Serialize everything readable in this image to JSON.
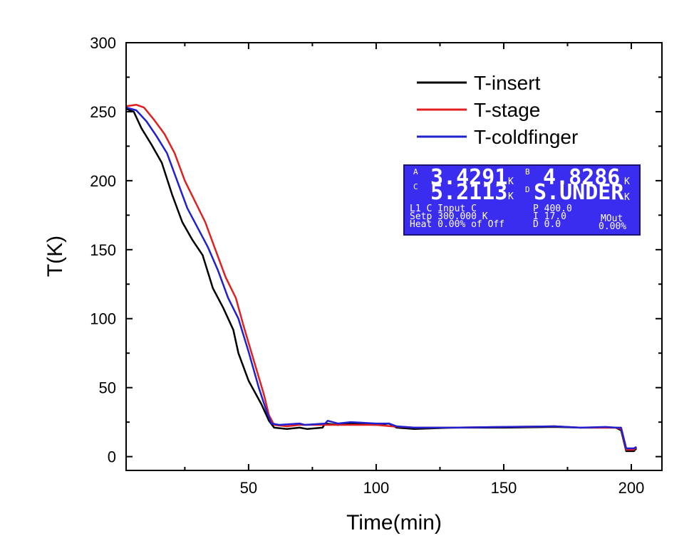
{
  "chart_data": {
    "type": "line",
    "xlabel": "Time(min)",
    "ylabel": "T(K)",
    "xlim": [
      2,
      212
    ],
    "ylim": [
      -10,
      300
    ],
    "xticks": [
      50,
      100,
      150,
      200
    ],
    "yticks": [
      0,
      50,
      100,
      150,
      200,
      250,
      300
    ],
    "grid": false,
    "legend_position": "top-right",
    "series": [
      {
        "name": "T-insert",
        "color": "#000000",
        "points": [
          [
            2,
            252
          ],
          [
            5,
            250
          ],
          [
            8,
            238
          ],
          [
            12,
            226
          ],
          [
            16,
            213
          ],
          [
            20,
            190
          ],
          [
            24,
            170
          ],
          [
            28,
            157
          ],
          [
            32,
            146
          ],
          [
            36,
            122
          ],
          [
            40,
            108
          ],
          [
            44,
            92
          ],
          [
            46,
            75
          ],
          [
            50,
            55
          ],
          [
            55,
            38
          ],
          [
            58,
            26
          ],
          [
            60,
            21
          ],
          [
            65,
            20
          ],
          [
            70,
            21
          ],
          [
            73,
            20
          ],
          [
            79,
            21
          ],
          [
            80,
            24
          ],
          [
            85,
            23
          ],
          [
            90,
            24
          ],
          [
            100,
            23
          ],
          [
            105,
            24
          ],
          [
            108,
            21
          ],
          [
            115,
            20
          ],
          [
            130,
            21
          ],
          [
            150,
            21
          ],
          [
            170,
            21.5
          ],
          [
            180,
            21
          ],
          [
            190,
            21
          ],
          [
            194,
            21
          ],
          [
            196,
            19
          ],
          [
            198,
            4
          ],
          [
            201,
            4
          ],
          [
            202,
            6
          ]
        ]
      },
      {
        "name": "T-stage",
        "color": "#e02020",
        "points": [
          [
            2,
            254
          ],
          [
            6,
            255
          ],
          [
            9,
            253
          ],
          [
            13,
            244
          ],
          [
            17,
            234
          ],
          [
            21,
            220
          ],
          [
            25,
            200
          ],
          [
            29,
            185
          ],
          [
            33,
            170
          ],
          [
            37,
            150
          ],
          [
            41,
            130
          ],
          [
            45,
            115
          ],
          [
            48,
            95
          ],
          [
            52,
            70
          ],
          [
            56,
            45
          ],
          [
            58,
            30
          ],
          [
            60,
            23
          ],
          [
            65,
            22
          ],
          [
            70,
            23
          ],
          [
            75,
            23
          ],
          [
            80,
            23
          ],
          [
            85,
            23
          ],
          [
            90,
            23
          ],
          [
            100,
            23
          ],
          [
            106,
            22
          ],
          [
            115,
            21
          ],
          [
            130,
            21
          ],
          [
            150,
            21.5
          ],
          [
            170,
            22
          ],
          [
            180,
            21
          ],
          [
            190,
            21
          ],
          [
            194,
            21
          ],
          [
            196,
            20
          ],
          [
            198,
            5
          ],
          [
            201,
            5
          ],
          [
            202,
            7
          ]
        ]
      },
      {
        "name": "T-coldfinger",
        "color": "#2020d0",
        "points": [
          [
            2,
            253
          ],
          [
            6,
            251
          ],
          [
            10,
            243
          ],
          [
            14,
            232
          ],
          [
            18,
            220
          ],
          [
            22,
            200
          ],
          [
            26,
            180
          ],
          [
            30,
            166
          ],
          [
            34,
            152
          ],
          [
            38,
            135
          ],
          [
            42,
            115
          ],
          [
            46,
            100
          ],
          [
            50,
            76
          ],
          [
            54,
            50
          ],
          [
            57,
            33
          ],
          [
            59,
            24
          ],
          [
            62,
            23
          ],
          [
            70,
            24
          ],
          [
            72,
            23
          ],
          [
            80,
            24
          ],
          [
            81,
            26
          ],
          [
            85,
            24
          ],
          [
            90,
            25
          ],
          [
            100,
            24
          ],
          [
            105,
            24
          ],
          [
            108,
            22
          ],
          [
            115,
            21
          ],
          [
            130,
            21
          ],
          [
            150,
            21.5
          ],
          [
            170,
            22
          ],
          [
            180,
            21
          ],
          [
            190,
            21.5
          ],
          [
            194,
            21
          ],
          [
            196,
            21
          ],
          [
            198,
            6
          ],
          [
            201,
            6
          ],
          [
            202,
            7
          ]
        ]
      }
    ]
  },
  "inset": {
    "bg": "#3a2df0",
    "row1": {
      "a_label": "A",
      "a_value": "3.4291",
      "a_unit": "K",
      "b_label": "B",
      "b_value": "4.8286",
      "b_unit": "K"
    },
    "row2": {
      "c_label": "C",
      "c_value": "5.2113",
      "c_unit": "K",
      "d_label": "D",
      "d_value": "S.UNDER",
      "d_unit": "K"
    },
    "line1": "L1 C Input C",
    "line2": "Setp 300.000 K",
    "line3": "Heat 0.00% of Off",
    "p": "P 400.0",
    "i": "I 17.0",
    "d": "D 0.0",
    "mout_label": "MOut",
    "mout_value": "0.00%"
  }
}
